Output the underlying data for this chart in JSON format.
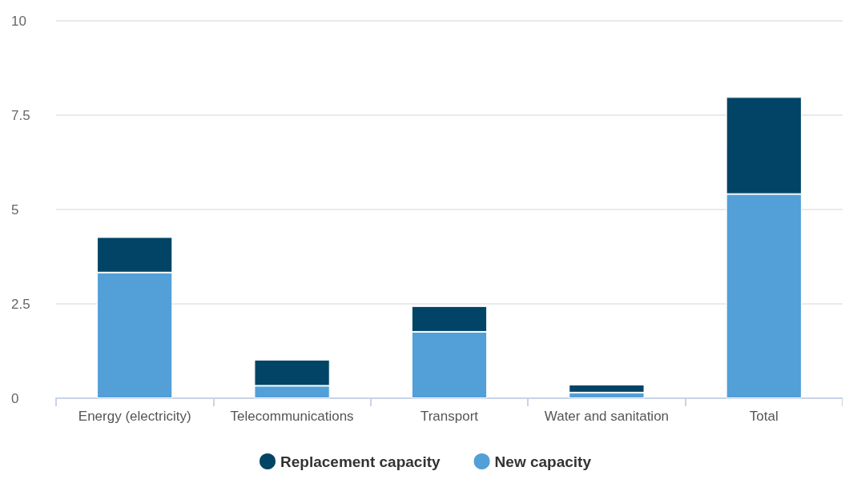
{
  "chart_data": {
    "type": "bar",
    "stacked": true,
    "categories": [
      "Energy (electricity)",
      "Telecommunications",
      "Transport",
      "Water and sanitation",
      "Total"
    ],
    "series": [
      {
        "name": "New capacity",
        "color": "#539fd7",
        "values": [
          3.33,
          0.33,
          1.76,
          0.15,
          5.41
        ]
      },
      {
        "name": "Replacement capacity",
        "color": "#014466",
        "values": [
          0.94,
          0.69,
          0.68,
          0.21,
          2.57
        ]
      }
    ],
    "ylim": [
      0,
      10
    ],
    "yticks": [
      0,
      2.5,
      5,
      7.5,
      10
    ],
    "grid": "y",
    "legend": "bottom"
  }
}
